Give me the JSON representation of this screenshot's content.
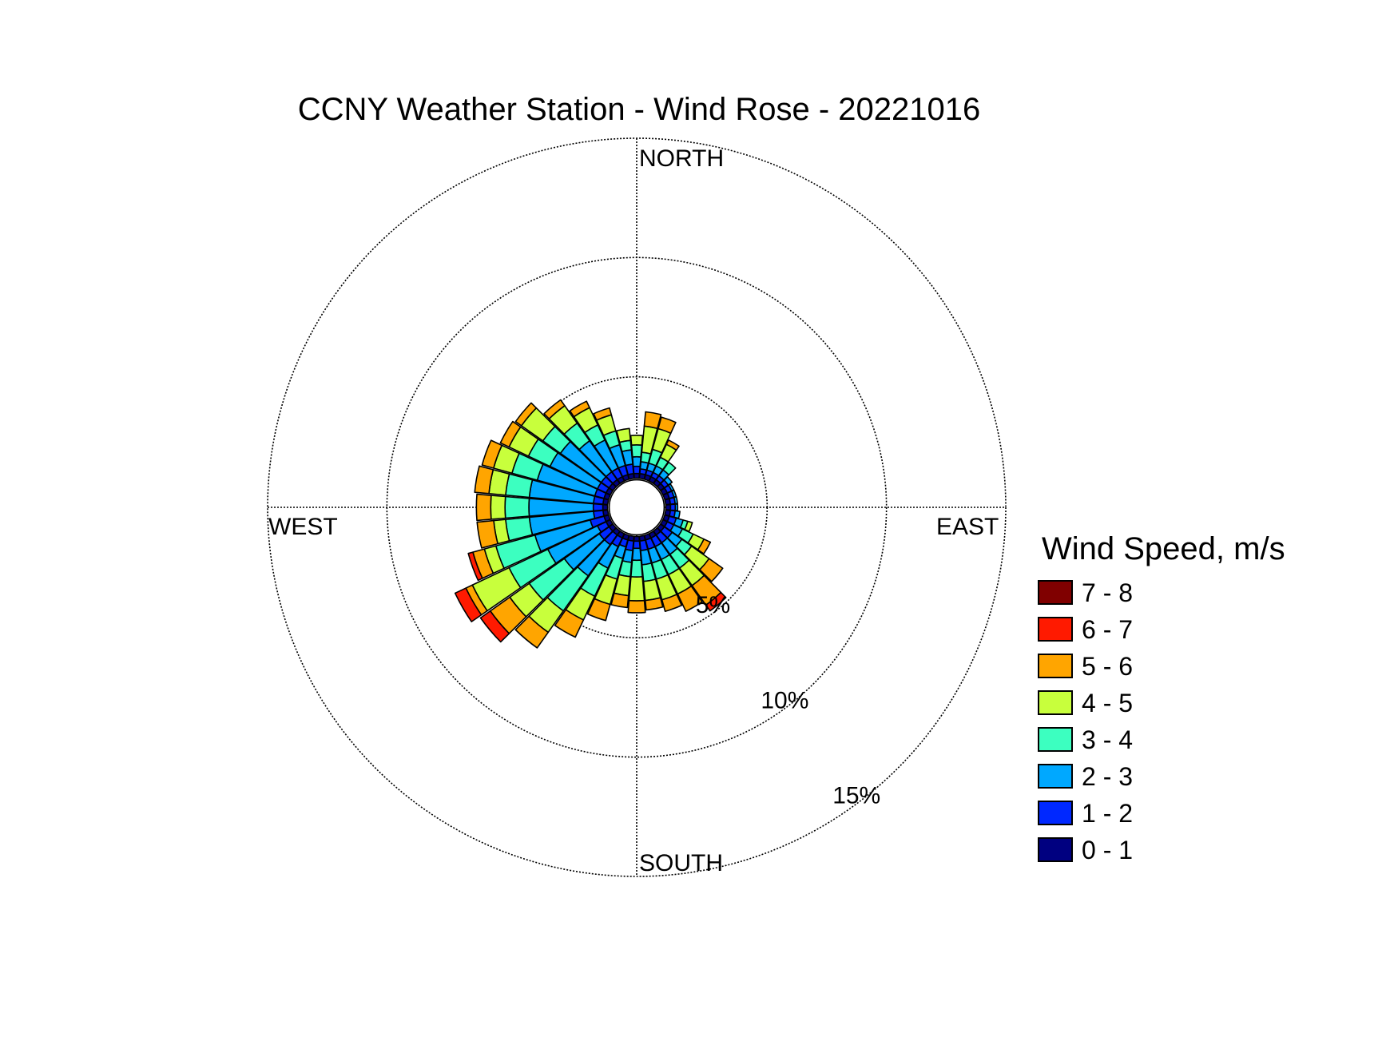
{
  "chart_data": {
    "type": "windrose",
    "title": "CCNY Weather Station - Wind Rose - 20221016",
    "direction_labels": {
      "north": "NORTH",
      "east": "EAST",
      "south": "SOUTH",
      "west": "WEST"
    },
    "rings": [
      {
        "value": 5,
        "label": "5%"
      },
      {
        "value": 10,
        "label": "10%"
      },
      {
        "value": 15,
        "label": "15%"
      }
    ],
    "radial_max": 15,
    "center_offset": 0.75,
    "sector_width_deg": 10,
    "legend": {
      "title": "Wind Speed, m/s",
      "items": [
        {
          "label": "7 - 8",
          "color": "#800000"
        },
        {
          "label": "6 - 7",
          "color": "#ff1a00"
        },
        {
          "label": "5 - 6",
          "color": "#ffa500"
        },
        {
          "label": "4 - 5",
          "color": "#c8ff3c"
        },
        {
          "label": "3 - 4",
          "color": "#3cffc0"
        },
        {
          "label": "2 - 3",
          "color": "#00a8ff"
        },
        {
          "label": "1 - 2",
          "color": "#0028ff"
        },
        {
          "label": "0 - 1",
          "color": "#000080"
        }
      ]
    },
    "speed_bins": [
      "0 - 1",
      "1 - 2",
      "2 - 3",
      "3 - 4",
      "4 - 5",
      "5 - 6",
      "6 - 7",
      "7 - 8"
    ],
    "sectors": [
      {
        "direction_deg": 10,
        "values": [
          0.2,
          0.2,
          0.3,
          0.4,
          1.1,
          0.6,
          0.0,
          0.0
        ]
      },
      {
        "direction_deg": 20,
        "values": [
          0.2,
          0.2,
          0.3,
          0.6,
          0.9,
          0.5,
          0.0,
          0.0
        ]
      },
      {
        "direction_deg": 30,
        "values": [
          0.2,
          0.2,
          0.3,
          0.4,
          0.6,
          0.2,
          0.0,
          0.0
        ]
      },
      {
        "direction_deg": 40,
        "values": [
          0.2,
          0.2,
          0.3,
          0.4,
          0.0,
          0.0,
          0.0,
          0.0
        ]
      },
      {
        "direction_deg": 50,
        "values": [
          0.2,
          0.2,
          0.2,
          0.0,
          0.0,
          0.0,
          0.0,
          0.0
        ]
      },
      {
        "direction_deg": 60,
        "values": [
          0.2,
          0.2,
          0.1,
          0.0,
          0.0,
          0.0,
          0.0,
          0.0
        ]
      },
      {
        "direction_deg": 70,
        "values": [
          0.2,
          0.2,
          0.1,
          0.0,
          0.0,
          0.0,
          0.0,
          0.0
        ]
      },
      {
        "direction_deg": 80,
        "values": [
          0.2,
          0.2,
          0.1,
          0.0,
          0.0,
          0.0,
          0.0,
          0.0
        ]
      },
      {
        "direction_deg": 90,
        "values": [
          0.2,
          0.2,
          0.1,
          0.0,
          0.0,
          0.0,
          0.0,
          0.0
        ]
      },
      {
        "direction_deg": 100,
        "values": [
          0.2,
          0.2,
          0.2,
          0.0,
          0.0,
          0.0,
          0.0,
          0.0
        ]
      },
      {
        "direction_deg": 110,
        "values": [
          0.2,
          0.3,
          0.3,
          0.2,
          0.2,
          0.0,
          0.0,
          0.0
        ]
      },
      {
        "direction_deg": 120,
        "values": [
          0.2,
          0.3,
          0.4,
          0.5,
          0.5,
          0.3,
          0.0,
          0.0
        ]
      },
      {
        "direction_deg": 130,
        "values": [
          0.2,
          0.4,
          0.5,
          0.5,
          0.9,
          0.7,
          0.0,
          0.0
        ]
      },
      {
        "direction_deg": 140,
        "values": [
          0.2,
          0.4,
          0.6,
          0.7,
          0.9,
          1.0,
          0.3,
          0.0
        ]
      },
      {
        "direction_deg": 150,
        "values": [
          0.2,
          0.4,
          0.6,
          0.7,
          0.9,
          0.8,
          0.0,
          0.0
        ]
      },
      {
        "direction_deg": 160,
        "values": [
          0.2,
          0.4,
          0.6,
          0.7,
          0.9,
          0.5,
          0.0,
          0.0
        ]
      },
      {
        "direction_deg": 170,
        "values": [
          0.2,
          0.4,
          0.6,
          0.7,
          0.8,
          0.4,
          0.0,
          0.0
        ]
      },
      {
        "direction_deg": 180,
        "values": [
          0.2,
          0.3,
          0.5,
          0.7,
          1.0,
          0.5,
          0.0,
          0.0
        ]
      },
      {
        "direction_deg": 190,
        "values": [
          0.2,
          0.4,
          0.5,
          0.6,
          0.8,
          0.5,
          0.0,
          0.0
        ]
      },
      {
        "direction_deg": 200,
        "values": [
          0.2,
          0.3,
          0.5,
          0.9,
          1.1,
          0.7,
          0.0,
          0.0
        ]
      },
      {
        "direction_deg": 210,
        "values": [
          0.2,
          0.4,
          1.0,
          1.3,
          1.1,
          0.8,
          0.0,
          0.0
        ]
      },
      {
        "direction_deg": 220,
        "values": [
          0.2,
          0.5,
          1.6,
          1.8,
          1.1,
          0.8,
          0.0,
          0.0
        ]
      },
      {
        "direction_deg": 230,
        "values": [
          0.2,
          0.5,
          1.8,
          1.8,
          1.0,
          1.0,
          0.5,
          0.0
        ]
      },
      {
        "direction_deg": 240,
        "values": [
          0.2,
          0.4,
          2.3,
          1.8,
          1.7,
          0.3,
          0.5,
          0.0
        ]
      },
      {
        "direction_deg": 250,
        "values": [
          0.2,
          0.6,
          2.4,
          1.7,
          0.5,
          0.5,
          0.2,
          0.0
        ]
      },
      {
        "direction_deg": 260,
        "values": [
          0.2,
          0.4,
          2.7,
          1.0,
          0.5,
          0.7,
          0.0,
          0.0
        ]
      },
      {
        "direction_deg": 270,
        "values": [
          0.2,
          0.4,
          2.7,
          1.0,
          0.6,
          0.6,
          0.0,
          0.0
        ]
      },
      {
        "direction_deg": 280,
        "values": [
          0.2,
          0.4,
          2.7,
          1.0,
          0.7,
          0.6,
          0.0,
          0.0
        ]
      },
      {
        "direction_deg": 290,
        "values": [
          0.2,
          0.4,
          2.5,
          1.1,
          0.8,
          0.5,
          0.0,
          0.0
        ]
      },
      {
        "direction_deg": 300,
        "values": [
          0.2,
          0.4,
          2.2,
          1.0,
          0.9,
          0.4,
          0.0,
          0.0
        ]
      },
      {
        "direction_deg": 310,
        "values": [
          0.2,
          0.4,
          2.1,
          0.9,
          1.1,
          0.3,
          0.0,
          0.0
        ]
      },
      {
        "direction_deg": 320,
        "values": [
          0.2,
          0.4,
          1.6,
          0.9,
          0.9,
          0.3,
          0.0,
          0.0
        ]
      },
      {
        "direction_deg": 330,
        "values": [
          0.2,
          0.4,
          1.3,
          0.7,
          0.8,
          0.3,
          0.0,
          0.0
        ]
      },
      {
        "direction_deg": 340,
        "values": [
          0.2,
          0.4,
          0.9,
          0.6,
          0.7,
          0.3,
          0.0,
          0.0
        ]
      },
      {
        "direction_deg": 350,
        "values": [
          0.2,
          0.4,
          0.6,
          0.4,
          0.5,
          0.0,
          0.0,
          0.0
        ]
      },
      {
        "direction_deg": 360,
        "values": [
          0.2,
          0.3,
          0.4,
          0.5,
          0.4,
          0.0,
          0.0,
          0.0
        ]
      }
    ]
  }
}
